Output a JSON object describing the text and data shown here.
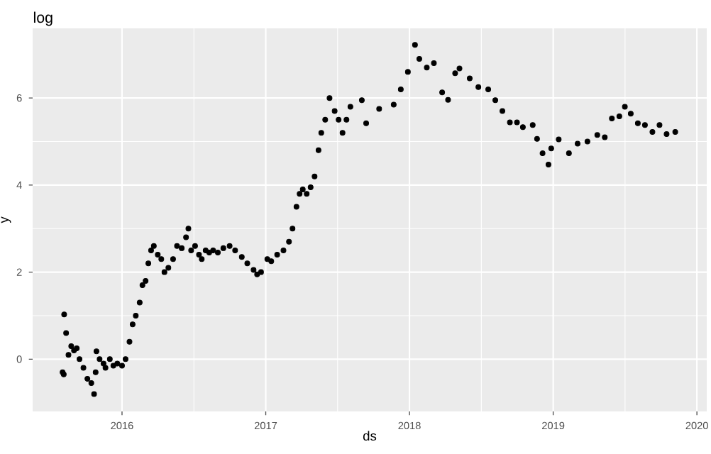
{
  "chart_data": {
    "type": "scatter",
    "title": "log",
    "xlabel": "ds",
    "ylabel": "y",
    "color": "#000000",
    "marker": "circle",
    "grid": true,
    "xlim": [
      "2015-05-19",
      "2020-01-26"
    ],
    "xticks": [
      "2016",
      "2017",
      "2018",
      "2019",
      "2020"
    ],
    "ylim": [
      -1.2,
      7.6
    ],
    "yticks": [
      0,
      2,
      4,
      6
    ],
    "x": [
      "2015-08-03",
      "2015-08-06",
      "2015-08-07",
      "2015-08-12",
      "2015-08-18",
      "2015-08-25",
      "2015-09-01",
      "2015-09-08",
      "2015-09-15",
      "2015-09-25",
      "2015-10-05",
      "2015-10-15",
      "2015-10-22",
      "2015-10-26",
      "2015-10-28",
      "2015-11-05",
      "2015-11-15",
      "2015-11-20",
      "2015-12-01",
      "2015-12-10",
      "2015-12-20",
      "2016-01-01",
      "2016-01-10",
      "2016-01-20",
      "2016-01-28",
      "2016-02-05",
      "2016-02-15",
      "2016-02-22",
      "2016-03-01",
      "2016-03-08",
      "2016-03-15",
      "2016-03-22",
      "2016-04-01",
      "2016-04-10",
      "2016-04-18",
      "2016-04-28",
      "2016-05-10",
      "2016-05-20",
      "2016-06-01",
      "2016-06-12",
      "2016-06-18",
      "2016-06-25",
      "2016-07-05",
      "2016-07-15",
      "2016-07-22",
      "2016-08-01",
      "2016-08-10",
      "2016-08-20",
      "2016-09-01",
      "2016-09-15",
      "2016-10-01",
      "2016-10-15",
      "2016-11-01",
      "2016-11-15",
      "2016-12-01",
      "2016-12-10",
      "2016-12-20",
      "2017-01-05",
      "2017-01-15",
      "2017-01-30",
      "2017-02-15",
      "2017-03-01",
      "2017-03-10",
      "2017-03-20",
      "2017-03-28",
      "2017-04-05",
      "2017-04-15",
      "2017-04-25",
      "2017-05-05",
      "2017-05-15",
      "2017-05-22",
      "2017-06-01",
      "2017-06-12",
      "2017-06-25",
      "2017-07-05",
      "2017-07-15",
      "2017-07-25",
      "2017-08-04",
      "2017-09-02",
      "2017-09-13",
      "2017-10-16",
      "2017-11-22",
      "2017-12-10",
      "2017-12-28",
      "2018-01-15",
      "2018-01-26",
      "2018-02-14",
      "2018-03-04",
      "2018-03-25",
      "2018-04-09",
      "2018-04-27",
      "2018-05-08",
      "2018-06-03",
      "2018-06-25",
      "2018-07-20",
      "2018-08-07",
      "2018-08-25",
      "2018-09-13",
      "2018-10-01",
      "2018-10-16",
      "2018-11-10",
      "2018-11-21",
      "2018-12-05",
      "2018-12-20",
      "2018-12-27",
      "2019-01-15",
      "2019-02-10",
      "2019-03-04",
      "2019-03-29",
      "2019-04-23",
      "2019-05-12",
      "2019-05-30",
      "2019-06-18",
      "2019-07-02",
      "2019-07-17",
      "2019-08-04",
      "2019-08-22",
      "2019-09-10",
      "2019-09-28",
      "2019-10-16",
      "2019-11-07"
    ],
    "values": [
      -0.3,
      -0.35,
      1.03,
      0.6,
      0.1,
      0.3,
      0.2,
      0.25,
      0.0,
      -0.2,
      -0.45,
      -0.55,
      -0.8,
      -0.3,
      0.18,
      0.0,
      -0.1,
      -0.2,
      0.0,
      -0.15,
      -0.1,
      -0.15,
      0.0,
      0.4,
      0.8,
      1.0,
      1.3,
      1.7,
      1.8,
      2.2,
      2.5,
      2.6,
      2.4,
      2.3,
      2.0,
      2.1,
      2.3,
      2.6,
      2.55,
      2.8,
      3.0,
      2.5,
      2.6,
      2.4,
      2.3,
      2.5,
      2.45,
      2.5,
      2.45,
      2.55,
      2.6,
      2.5,
      2.35,
      2.2,
      2.05,
      1.95,
      2.0,
      2.3,
      2.25,
      2.4,
      2.5,
      2.7,
      3.0,
      3.5,
      3.8,
      3.9,
      3.8,
      3.95,
      4.2,
      4.8,
      5.2,
      5.5,
      6.0,
      5.7,
      5.5,
      5.2,
      5.5,
      5.8,
      5.95,
      5.42,
      5.75,
      5.85,
      6.2,
      6.6,
      7.22,
      6.9,
      6.7,
      6.8,
      6.13,
      5.96,
      6.57,
      6.68,
      6.45,
      6.25,
      6.2,
      5.95,
      5.7,
      5.44,
      5.44,
      5.33,
      5.38,
      5.06,
      4.73,
      4.47,
      4.84,
      5.05,
      4.73,
      4.95,
      5.0,
      5.15,
      5.1,
      5.53,
      5.58,
      5.8,
      5.64,
      5.42,
      5.38,
      5.22,
      5.38,
      5.17,
      5.22
    ]
  }
}
